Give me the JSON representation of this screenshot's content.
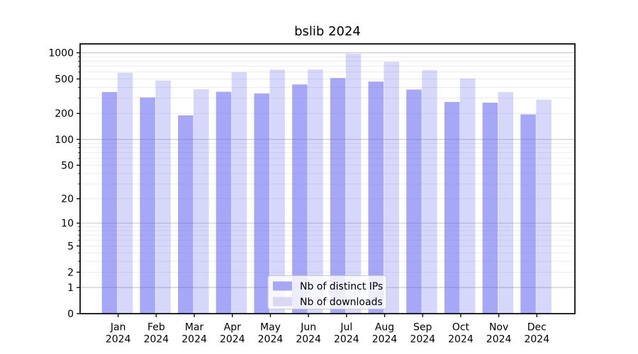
{
  "figure": {
    "title": "bslib 2024"
  },
  "chart_data": {
    "type": "bar",
    "title": "bslib 2024",
    "categories": [
      "Jan",
      "Feb",
      "Mar",
      "Apr",
      "May",
      "Jun",
      "Jul",
      "Aug",
      "Sep",
      "Oct",
      "Nov",
      "Dec"
    ],
    "category_year": "2024",
    "series": [
      {
        "name": "Nb of distinct IPs",
        "legend_color": "#a7a7f7",
        "fill": "rgba(95,95,240,0.55)",
        "values": [
          353,
          306,
          190,
          356,
          340,
          432,
          512,
          466,
          377,
          271,
          266,
          195
        ]
      },
      {
        "name": "Nb of downloads",
        "legend_color": "#d9d9f6",
        "fill": "rgba(95,95,240,0.25)",
        "values": [
          590,
          480,
          380,
          600,
          640,
          643,
          975,
          790,
          630,
          505,
          353,
          288
        ]
      }
    ],
    "yscale": "log1p",
    "ylim": [
      0,
      1270
    ],
    "yticks": [
      0,
      1,
      2,
      5,
      10,
      20,
      50,
      100,
      200,
      500,
      1000
    ],
    "grid": true,
    "grid_major_color": "#c6c6c6",
    "grid_minor_color": "#eaeaea",
    "axis_color": "#000000",
    "legend_position": "lower center"
  }
}
